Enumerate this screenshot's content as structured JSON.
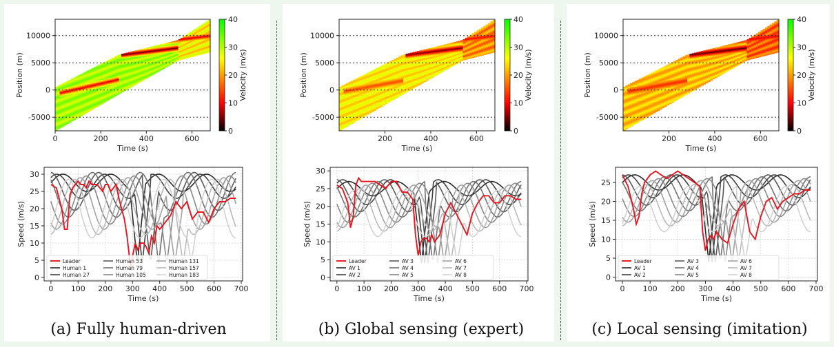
{
  "captions": [
    "(a) Fully human-driven",
    "(b) Global sensing (expert)",
    "(c) Local sensing (imitation)"
  ],
  "chart_data": [
    {
      "type": "heatmap",
      "panel": 0,
      "xlabel": "Time (s)",
      "ylabel": "Position (m)",
      "colorbar_label": "Velocity (m/s)",
      "xticks": [
        0,
        200,
        400,
        600
      ],
      "yticks": [
        -5000,
        0,
        5000,
        10000
      ],
      "colorbar_ticks": [
        0,
        10,
        20,
        30,
        40
      ],
      "xlim": [
        0,
        680
      ],
      "ylim": [
        -7500,
        13000
      ],
      "clim": [
        0,
        40
      ],
      "colormap": [
        "#000000",
        "#ff0000",
        "#ffff00",
        "#00ff00"
      ],
      "base_velocity": 31,
      "jam_stripes": [
        {
          "time": [
            20,
            280
          ],
          "position": [
            -500,
            2000
          ],
          "velocity": 8
        },
        {
          "time": [
            290,
            540
          ],
          "position": [
            6500,
            7800
          ],
          "velocity": 3
        },
        {
          "time": [
            430,
            680
          ],
          "position": [
            8800,
            10000
          ],
          "velocity": 8
        }
      ]
    },
    {
      "type": "heatmap",
      "panel": 1,
      "xlabel": "Time (s)",
      "ylabel": "Position (m)",
      "colorbar_label": "Velocity (m/s)",
      "xticks": [
        200,
        400,
        600
      ],
      "yticks": [
        -5000,
        0,
        5000,
        10000
      ],
      "colorbar_ticks": [
        0,
        10,
        20,
        30,
        40
      ],
      "xlim": [
        0,
        680
      ],
      "ylim": [
        -7500,
        13000
      ],
      "clim": [
        0,
        40
      ],
      "colormap": [
        "#000000",
        "#ff0000",
        "#ffff00",
        "#00ff00"
      ],
      "base_velocity": 25,
      "jam_stripes": [
        {
          "time": [
            20,
            280
          ],
          "position": [
            -200,
            1800
          ],
          "velocity": 14
        },
        {
          "time": [
            290,
            540
          ],
          "position": [
            6500,
            7800
          ],
          "velocity": 4
        },
        {
          "time": [
            430,
            680
          ],
          "position": [
            8800,
            10000
          ],
          "velocity": 10
        }
      ]
    },
    {
      "type": "heatmap",
      "panel": 2,
      "xlabel": "Time (s)",
      "ylabel": "Position (m)",
      "colorbar_label": "Velocity (m/s)",
      "xticks": [
        200,
        400,
        600
      ],
      "yticks": [
        -5000,
        0,
        5000,
        10000
      ],
      "colorbar_ticks": [
        0,
        10,
        20,
        30,
        40
      ],
      "xlim": [
        0,
        680
      ],
      "ylim": [
        -7500,
        13000
      ],
      "clim": [
        0,
        40
      ],
      "colormap": [
        "#000000",
        "#ff0000",
        "#ffff00",
        "#00ff00"
      ],
      "base_velocity": 22,
      "jam_stripes": [
        {
          "time": [
            20,
            280
          ],
          "position": [
            -200,
            1800
          ],
          "velocity": 12
        },
        {
          "time": [
            290,
            540
          ],
          "position": [
            6500,
            7800
          ],
          "velocity": 3
        },
        {
          "time": [
            430,
            680
          ],
          "position": [
            8800,
            10000
          ],
          "velocity": 9
        }
      ]
    },
    {
      "type": "line",
      "panel": 0,
      "xlabel": "Time (s)",
      "ylabel": "Speed (m/s)",
      "xticks": [
        0,
        100,
        200,
        300,
        400,
        500,
        600,
        700
      ],
      "yticks": [
        0,
        5,
        10,
        15,
        20,
        25,
        30
      ],
      "xlim": [
        -25,
        705
      ],
      "ylim": [
        -1,
        32
      ],
      "grid": true,
      "legend": {
        "location": "lower-left",
        "columns": 3
      },
      "leader": {
        "name": "Leader",
        "color": "#e8141e",
        "x": [
          0,
          20,
          40,
          50,
          60,
          70,
          80,
          90,
          100,
          110,
          120,
          130,
          140,
          150,
          160,
          170,
          180,
          190,
          200,
          210,
          220,
          230,
          240,
          250,
          260,
          270,
          280,
          290,
          295,
          300,
          310,
          320,
          330,
          340,
          350,
          360,
          370,
          380,
          390,
          400,
          420,
          440,
          460,
          480,
          500,
          520,
          540,
          560,
          580,
          600,
          620,
          640,
          660,
          680
        ],
        "y": [
          27,
          26,
          20,
          14,
          14,
          24,
          26,
          27,
          28,
          27,
          27,
          26,
          28,
          27,
          27,
          27,
          26,
          25,
          27,
          27,
          25,
          26,
          27,
          23,
          20,
          17,
          12,
          5,
          2,
          6,
          10,
          8,
          10,
          10,
          9,
          7,
          12,
          10,
          15,
          14,
          16,
          18,
          22,
          20,
          22,
          17,
          19,
          19,
          16,
          20,
          22,
          22,
          23,
          23
        ]
      },
      "followers": [
        {
          "name": "Human 1",
          "amp": 2.5,
          "mean": 27.5,
          "phase": 0,
          "drop": 30
        },
        {
          "name": "Human 27",
          "amp": 3.5,
          "mean": 26.5,
          "phase": 0.8,
          "drop": 60
        },
        {
          "name": "Human 53",
          "amp": 5.5,
          "mean": 25,
          "phase": 1.6,
          "drop": 110
        },
        {
          "name": "Human 79",
          "amp": 6.5,
          "mean": 24,
          "phase": 2.4,
          "drop": 160
        },
        {
          "name": "Human 105",
          "amp": 7,
          "mean": 22.5,
          "phase": 3.2,
          "drop": 210
        },
        {
          "name": "Human 131",
          "amp": 7.5,
          "mean": 21.5,
          "phase": 4.0,
          "drop": 260
        },
        {
          "name": "Human 157",
          "amp": 8,
          "mean": 20.5,
          "phase": 4.8,
          "drop": 310
        },
        {
          "name": "Human 183",
          "amp": 8.5,
          "mean": 20,
          "phase": 5.6,
          "drop": 360
        }
      ]
    },
    {
      "type": "line",
      "panel": 1,
      "xlabel": "Time (s)",
      "ylabel": "Speed (m/s)",
      "xticks": [
        0,
        100,
        200,
        300,
        400,
        500,
        600,
        700
      ],
      "yticks": [
        0,
        5,
        10,
        15,
        20,
        25,
        30
      ],
      "xlim": [
        -25,
        705
      ],
      "ylim": [
        -1,
        31
      ],
      "grid": true,
      "legend": {
        "location": "lower-left",
        "columns": 3
      },
      "leader": {
        "name": "Leader",
        "color": "#e8141e",
        "x": [
          0,
          20,
          40,
          50,
          60,
          70,
          80,
          90,
          100,
          120,
          140,
          160,
          180,
          200,
          220,
          240,
          260,
          280,
          290,
          300,
          310,
          320,
          330,
          340,
          350,
          360,
          380,
          400,
          420,
          440,
          460,
          480,
          500,
          520,
          540,
          560,
          580,
          600,
          620,
          640,
          660,
          680
        ],
        "y": [
          26,
          25,
          21,
          14,
          17,
          26,
          28,
          27,
          27,
          27,
          27,
          26,
          25,
          27,
          27,
          24,
          24,
          22,
          12,
          6,
          10,
          11,
          11,
          10,
          12,
          10,
          12,
          18,
          21,
          18,
          15,
          12,
          18,
          21,
          23,
          23,
          21,
          21,
          23,
          23,
          22,
          22
        ]
      },
      "followers": [
        {
          "name": "AV 1",
          "amp": 2,
          "mean": 25,
          "phase": 0,
          "drop": 20
        },
        {
          "name": "AV 2",
          "amp": 3.5,
          "mean": 24,
          "phase": 0.8,
          "drop": 40
        },
        {
          "name": "AV 3",
          "amp": 4.5,
          "mean": 23,
          "phase": 1.6,
          "drop": 60
        },
        {
          "name": "AV 4",
          "amp": 5,
          "mean": 22,
          "phase": 2.4,
          "drop": 90
        },
        {
          "name": "AV 5",
          "amp": 5.5,
          "mean": 21,
          "phase": 3.2,
          "drop": 120
        },
        {
          "name": "AV 6",
          "amp": 6,
          "mean": 20,
          "phase": 4.0,
          "drop": 160
        },
        {
          "name": "AV 7",
          "amp": 6,
          "mean": 19,
          "phase": 4.8,
          "drop": 200
        },
        {
          "name": "AV 8",
          "amp": 6.5,
          "mean": 18,
          "phase": 5.6,
          "drop": 240
        }
      ]
    },
    {
      "type": "line",
      "panel": 2,
      "xlabel": "Time (s)",
      "ylabel": "Speed (m/s)",
      "xticks": [
        0,
        100,
        200,
        300,
        400,
        500,
        600,
        700
      ],
      "yticks": [
        0,
        5,
        10,
        15,
        20,
        25
      ],
      "xlim": [
        -25,
        705
      ],
      "ylim": [
        -1,
        29
      ],
      "grid": true,
      "legend": {
        "location": "lower-left",
        "columns": 3
      },
      "leader": {
        "name": "Leader",
        "color": "#e8141e",
        "x": [
          0,
          20,
          40,
          50,
          60,
          70,
          80,
          100,
          120,
          140,
          160,
          180,
          200,
          220,
          240,
          260,
          280,
          290,
          300,
          310,
          320,
          330,
          340,
          360,
          380,
          400,
          420,
          440,
          460,
          480,
          500,
          520,
          540,
          560,
          580,
          600,
          620,
          640,
          660,
          680
        ],
        "y": [
          27,
          24,
          18,
          14,
          16,
          22,
          25,
          27,
          28,
          27,
          26,
          27,
          28,
          27,
          26,
          25,
          24,
          12,
          7,
          10,
          11,
          10,
          12,
          10,
          9,
          14,
          18,
          20,
          12,
          10,
          16,
          20,
          21,
          18,
          20,
          21,
          22,
          22,
          23,
          23
        ]
      },
      "followers": [
        {
          "name": "AV 1",
          "amp": 2,
          "mean": 25,
          "phase": 0,
          "drop": 20
        },
        {
          "name": "AV 2",
          "amp": 3,
          "mean": 24,
          "phase": 0.8,
          "drop": 40
        },
        {
          "name": "AV 3",
          "amp": 4,
          "mean": 23,
          "phase": 1.6,
          "drop": 60
        },
        {
          "name": "AV 4",
          "amp": 4.5,
          "mean": 22,
          "phase": 2.4,
          "drop": 90
        },
        {
          "name": "AV 5",
          "amp": 5,
          "mean": 21,
          "phase": 3.2,
          "drop": 120
        },
        {
          "name": "AV 6",
          "amp": 5.5,
          "mean": 20,
          "phase": 4.0,
          "drop": 160
        },
        {
          "name": "AV 7",
          "amp": 5.5,
          "mean": 19,
          "phase": 4.8,
          "drop": 200
        },
        {
          "name": "AV 8",
          "amp": 6,
          "mean": 18,
          "phase": 5.6,
          "drop": 240
        }
      ]
    }
  ]
}
